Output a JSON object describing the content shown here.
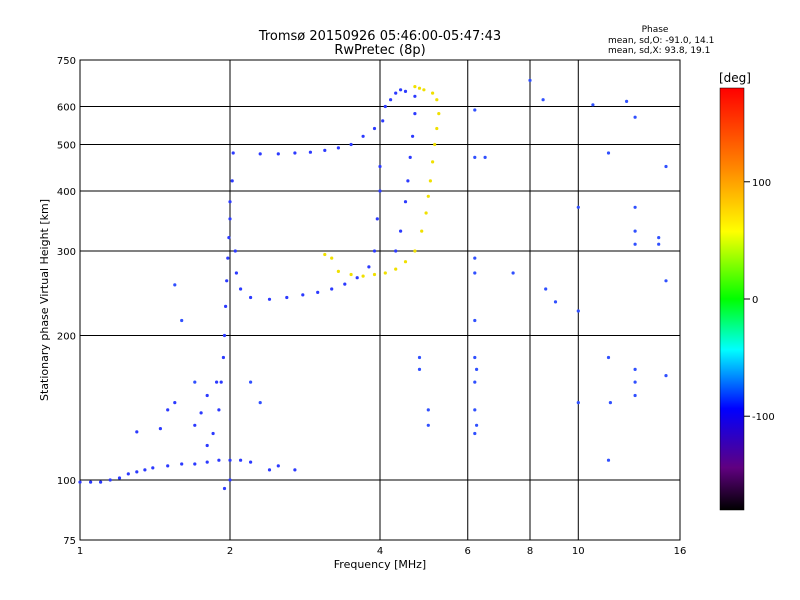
{
  "chart_data": {
    "type": "scatter",
    "title": "Tromsø 20150926 05:46:00-05:47:43",
    "subtitle": "RwPretec (8p)",
    "xlabel": "Frequency [MHz]",
    "ylabel": "Stationary phase Virtual Height [km]",
    "x_scale": "log",
    "y_scale": "log",
    "xlim": [
      1,
      16
    ],
    "ylim": [
      75,
      750
    ],
    "x_ticks": [
      1,
      2,
      4,
      6,
      8,
      10,
      16
    ],
    "y_ticks": [
      75,
      100,
      200,
      300,
      400,
      500,
      600,
      750
    ],
    "grid": true,
    "phase_box": {
      "heading": "Phase",
      "line1": "mean, sd,O:  -91.0, 14.1",
      "line2": "mean, sd,X:  93.8, 19.1"
    },
    "colorbar": {
      "label": "[deg]",
      "range": [
        -180,
        180
      ],
      "ticks": [
        100,
        0,
        -100
      ],
      "colors": [
        "#ff0000",
        "#ffff00",
        "#00ff00",
        "#00ffff",
        "#0000ff",
        "#800080",
        "#000000"
      ]
    },
    "series": [
      {
        "name": "O-mode trace",
        "points": [
          [
            1.0,
            99
          ],
          [
            1.05,
            99
          ],
          [
            1.1,
            99
          ],
          [
            1.15,
            100
          ],
          [
            1.2,
            101
          ],
          [
            1.25,
            103
          ],
          [
            1.3,
            104
          ],
          [
            1.35,
            105
          ],
          [
            1.4,
            106
          ],
          [
            1.5,
            107
          ],
          [
            1.6,
            108
          ],
          [
            1.7,
            108
          ],
          [
            1.8,
            109
          ],
          [
            1.9,
            110
          ],
          [
            2.0,
            110
          ],
          [
            2.1,
            110
          ],
          [
            2.2,
            109
          ],
          [
            1.8,
            118
          ],
          [
            1.85,
            125
          ],
          [
            1.9,
            140
          ],
          [
            1.92,
            160
          ],
          [
            1.94,
            180
          ],
          [
            1.95,
            200
          ],
          [
            1.96,
            230
          ],
          [
            1.97,
            260
          ],
          [
            1.98,
            290
          ],
          [
            1.99,
            320
          ],
          [
            2.0,
            350
          ],
          [
            2.0,
            380
          ],
          [
            2.02,
            420
          ],
          [
            2.03,
            480
          ],
          [
            2.05,
            300
          ],
          [
            2.06,
            270
          ],
          [
            2.1,
            250
          ],
          [
            2.2,
            240
          ],
          [
            2.4,
            238
          ],
          [
            2.6,
            240
          ],
          [
            2.8,
            243
          ],
          [
            3.0,
            246
          ],
          [
            3.2,
            250
          ],
          [
            3.4,
            256
          ],
          [
            3.6,
            264
          ],
          [
            3.8,
            278
          ],
          [
            3.9,
            300
          ],
          [
            3.95,
            350
          ],
          [
            4.0,
            400
          ],
          [
            4.0,
            450
          ],
          [
            4.05,
            560
          ],
          [
            4.1,
            600
          ],
          [
            4.2,
            620
          ],
          [
            4.3,
            640
          ],
          [
            4.4,
            650
          ],
          [
            4.5,
            645
          ],
          [
            4.3,
            300
          ],
          [
            4.4,
            330
          ],
          [
            4.5,
            380
          ],
          [
            4.55,
            420
          ],
          [
            4.6,
            470
          ],
          [
            4.65,
            520
          ],
          [
            4.7,
            580
          ],
          [
            4.7,
            630
          ],
          [
            2.3,
            478
          ],
          [
            2.5,
            478
          ],
          [
            2.7,
            480
          ],
          [
            2.9,
            482
          ],
          [
            3.1,
            486
          ],
          [
            3.3,
            492
          ],
          [
            3.5,
            500
          ],
          [
            3.7,
            520
          ],
          [
            3.9,
            540
          ],
          [
            1.55,
            145
          ],
          [
            1.5,
            140
          ],
          [
            1.45,
            128
          ],
          [
            1.3,
            126
          ],
          [
            1.7,
            130
          ],
          [
            1.75,
            138
          ],
          [
            1.8,
            150
          ],
          [
            1.88,
            160
          ],
          [
            2.0,
            100
          ],
          [
            1.95,
            96
          ],
          [
            2.4,
            105
          ],
          [
            2.5,
            107
          ],
          [
            2.7,
            105
          ]
        ],
        "color": "#2c3aff"
      },
      {
        "name": "X-mode trace",
        "points": [
          [
            3.3,
            272
          ],
          [
            3.5,
            268
          ],
          [
            3.7,
            266
          ],
          [
            3.9,
            268
          ],
          [
            4.1,
            270
          ],
          [
            4.3,
            275
          ],
          [
            4.5,
            285
          ],
          [
            4.7,
            300
          ],
          [
            4.85,
            330
          ],
          [
            4.95,
            360
          ],
          [
            5.0,
            390
          ],
          [
            5.05,
            420
          ],
          [
            5.1,
            460
          ],
          [
            5.15,
            500
          ],
          [
            5.2,
            540
          ],
          [
            5.25,
            580
          ],
          [
            5.2,
            620
          ],
          [
            5.1,
            640
          ],
          [
            4.9,
            650
          ],
          [
            4.8,
            655
          ],
          [
            4.7,
            660
          ],
          [
            3.2,
            290
          ],
          [
            3.1,
            295
          ]
        ],
        "color": "#f0e000"
      },
      {
        "name": "scattered",
        "points": [
          [
            6.2,
            590
          ],
          [
            6.2,
            470
          ],
          [
            6.5,
            470
          ],
          [
            6.2,
            290
          ],
          [
            6.2,
            270
          ],
          [
            6.2,
            215
          ],
          [
            6.2,
            180
          ],
          [
            6.25,
            170
          ],
          [
            6.2,
            160
          ],
          [
            6.2,
            140
          ],
          [
            6.25,
            130
          ],
          [
            6.2,
            125
          ],
          [
            7.4,
            270
          ],
          [
            8.0,
            680
          ],
          [
            8.5,
            620
          ],
          [
            8.6,
            250
          ],
          [
            9.0,
            235
          ],
          [
            10.0,
            370
          ],
          [
            10.0,
            225
          ],
          [
            10.0,
            145
          ],
          [
            10.7,
            605
          ],
          [
            11.5,
            480
          ],
          [
            11.5,
            180
          ],
          [
            11.5,
            110
          ],
          [
            11.6,
            145
          ],
          [
            12.5,
            615
          ],
          [
            13.0,
            570
          ],
          [
            13.0,
            370
          ],
          [
            13.0,
            330
          ],
          [
            13.0,
            310
          ],
          [
            13.0,
            170
          ],
          [
            13.0,
            160
          ],
          [
            13.0,
            150
          ],
          [
            14.5,
            320
          ],
          [
            14.5,
            310
          ],
          [
            15.0,
            450
          ],
          [
            15.0,
            260
          ],
          [
            15.0,
            165
          ],
          [
            4.8,
            180
          ],
          [
            4.8,
            170
          ],
          [
            5.0,
            140
          ],
          [
            5.0,
            130
          ],
          [
            1.55,
            255
          ],
          [
            1.6,
            215
          ],
          [
            1.7,
            160
          ],
          [
            2.2,
            160
          ],
          [
            2.3,
            145
          ]
        ],
        "color": "#3050ff"
      }
    ]
  }
}
